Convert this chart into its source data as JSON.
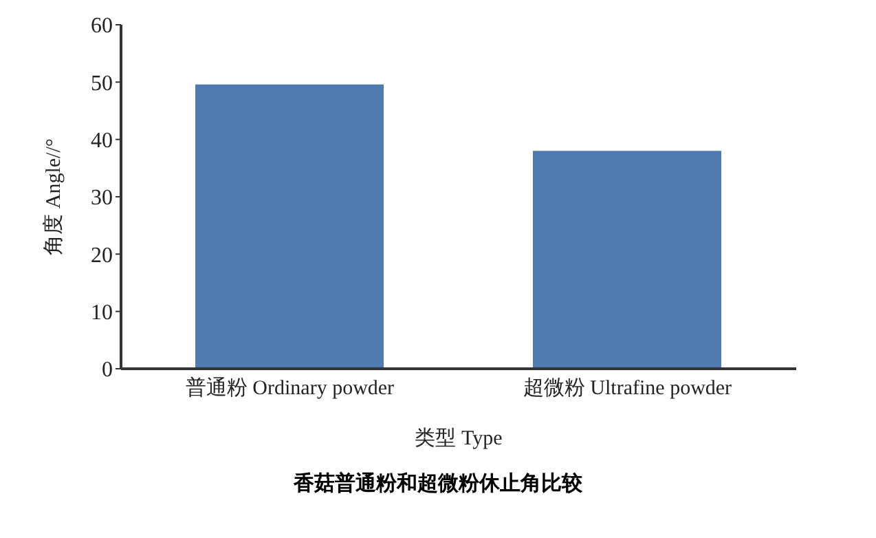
{
  "chart_data": {
    "type": "bar",
    "title": "香菇普通粉和超微粉休止角比较",
    "xlabel": "类型 Type",
    "ylabel": "角度 Angle//°",
    "categories": [
      "普通粉 Ordinary powder",
      "超微粉 Ultrafine powder"
    ],
    "values": [
      49.6,
      38.0
    ],
    "color": "#4f7bb0",
    "ylim": [
      0,
      60
    ],
    "yticks": [
      0,
      10,
      20,
      30,
      40,
      50,
      60
    ],
    "grid": false,
    "legend": false
  }
}
